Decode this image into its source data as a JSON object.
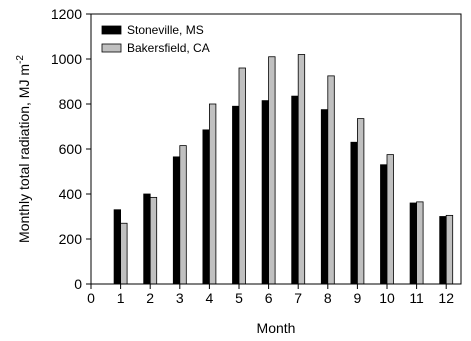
{
  "chart_data": {
    "type": "bar",
    "xlabel": "Month",
    "ylabel": "Monthly total radiation, MJ m",
    "ylabel_sup": "-2",
    "xlim": [
      0,
      12.5
    ],
    "ylim": [
      0,
      1200
    ],
    "xticks": [
      0,
      1,
      2,
      3,
      4,
      5,
      6,
      7,
      8,
      9,
      10,
      11,
      12
    ],
    "yticks": [
      0,
      200,
      400,
      600,
      800,
      1000,
      1200
    ],
    "categories": [
      1,
      2,
      3,
      4,
      5,
      6,
      7,
      8,
      9,
      10,
      11,
      12
    ],
    "series": [
      {
        "name": "Stoneville, MS",
        "color": "#000000",
        "values": [
          330,
          400,
          565,
          685,
          790,
          815,
          835,
          775,
          630,
          530,
          360,
          300
        ]
      },
      {
        "name": "Bakersfield, CA",
        "color": "#c0c0c0",
        "values": [
          270,
          385,
          615,
          800,
          960,
          1010,
          1020,
          925,
          735,
          575,
          365,
          305
        ]
      }
    ],
    "legend": "top-left",
    "grid": false
  }
}
